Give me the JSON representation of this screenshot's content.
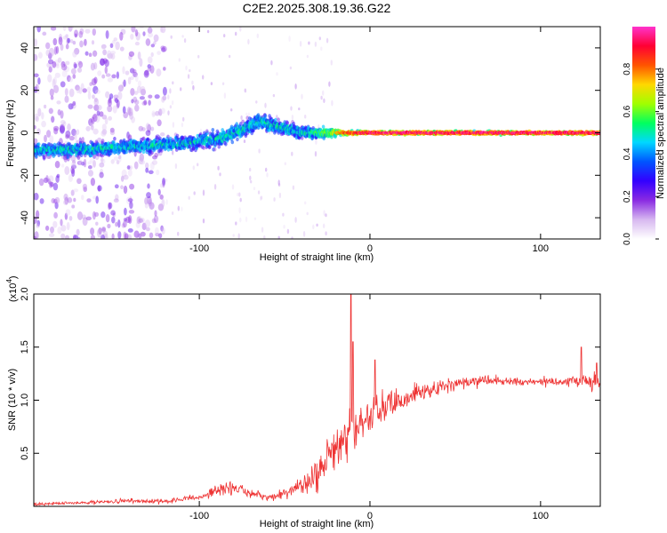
{
  "chart_data": [
    {
      "type": "heatmap",
      "title": "C2E2.2025.308.19.36.G22",
      "xlabel": "Height of straight line (km)",
      "ylabel": "Frequency (Hz)",
      "xlim": [
        -197,
        135
      ],
      "ylim": [
        -50,
        50
      ],
      "x_ticks": [
        -100,
        0,
        100
      ],
      "x_tick_labels": [
        "-100",
        "0",
        "100"
      ],
      "y_ticks": [
        -40,
        -20,
        0,
        20,
        40
      ],
      "y_tick_labels": [
        "-40",
        "-20",
        "0",
        "20",
        "40"
      ],
      "grid": false,
      "colorbar": {
        "label": "Normalized spectral amplitude",
        "range": [
          0,
          1
        ],
        "ticks": [
          0.0,
          0.2,
          0.4,
          0.6,
          0.8
        ],
        "tick_labels": [
          "0.0",
          "0.2",
          "0.4",
          "0.6",
          "0.8"
        ],
        "colors": [
          "#ffffff",
          "#d7b8f0",
          "#8a2be2",
          "#3300ff",
          "#0055ff",
          "#00d8ff",
          "#00ff60",
          "#a0ff00",
          "#ffd800",
          "#ff5500",
          "#ff0033",
          "#ff33cc"
        ]
      },
      "ridge": {
        "x": [
          -190,
          -170,
          -150,
          -130,
          -110,
          -90,
          -75,
          -65,
          -55,
          -40,
          -25,
          -15,
          0,
          20,
          50,
          80,
          110,
          135
        ],
        "center_hz": [
          -8,
          -8,
          -7,
          -6,
          -5,
          -3,
          1,
          6,
          3,
          0,
          0,
          0,
          0,
          0,
          0,
          0,
          0,
          0
        ],
        "spread_hz": [
          6,
          6,
          6,
          6,
          6,
          7,
          8,
          8,
          7,
          6,
          4,
          2,
          1.5,
          1.5,
          1.5,
          1.5,
          1.5,
          1.5
        ],
        "peak_amplitude": [
          0.45,
          0.45,
          0.45,
          0.45,
          0.45,
          0.45,
          0.45,
          0.45,
          0.45,
          0.45,
          0.6,
          0.85,
          0.95,
          0.95,
          0.95,
          0.95,
          0.95,
          0.95
        ]
      },
      "scatter_noise_region": [
        -197,
        -120
      ]
    },
    {
      "type": "line",
      "xlabel": "Height of straight line (km)",
      "ylabel": "SNR (10 * v/v)",
      "y_scale_label": "(x10",
      "y_scale_exponent": "4",
      "xlim": [
        -197,
        135
      ],
      "ylim": [
        0,
        2.0
      ],
      "x_ticks": [
        -100,
        0,
        100
      ],
      "x_tick_labels": [
        "-100",
        "0",
        "100"
      ],
      "y_ticks": [
        0.5,
        1.0,
        1.5,
        2.0
      ],
      "y_tick_labels": [
        "0.5",
        "1.0",
        "1.5",
        "2.0"
      ],
      "grid": false,
      "line_color": "#ee3333",
      "series_envelope": {
        "x": [
          -197,
          -180,
          -160,
          -140,
          -120,
          -100,
          -90,
          -80,
          -70,
          -60,
          -50,
          -40,
          -30,
          -25,
          -20,
          -15,
          -10,
          -5,
          0,
          10,
          20,
          30,
          40,
          50,
          60,
          70,
          80,
          90,
          100,
          110,
          120,
          130,
          135
        ],
        "mean": [
          0.02,
          0.03,
          0.04,
          0.05,
          0.05,
          0.08,
          0.15,
          0.18,
          0.12,
          0.08,
          0.12,
          0.2,
          0.3,
          0.45,
          0.55,
          0.62,
          0.7,
          0.78,
          0.85,
          0.95,
          1.02,
          1.08,
          1.12,
          1.15,
          1.17,
          1.18,
          1.18,
          1.17,
          1.18,
          1.18,
          1.18,
          1.18,
          1.2
        ],
        "noise": [
          0.02,
          0.02,
          0.02,
          0.03,
          0.03,
          0.04,
          0.07,
          0.09,
          0.06,
          0.04,
          0.07,
          0.12,
          0.25,
          0.3,
          0.3,
          0.3,
          0.28,
          0.25,
          0.22,
          0.18,
          0.13,
          0.1,
          0.09,
          0.08,
          0.07,
          0.07,
          0.06,
          0.05,
          0.06,
          0.06,
          0.07,
          0.1,
          0.1
        ]
      },
      "spikes": [
        {
          "x": -11,
          "y": 2.0
        },
        {
          "x": -10,
          "y": 1.55
        },
        {
          "x": 3,
          "y": 1.38
        },
        {
          "x": 124,
          "y": 1.5
        },
        {
          "x": 133,
          "y": 1.35
        }
      ]
    }
  ]
}
